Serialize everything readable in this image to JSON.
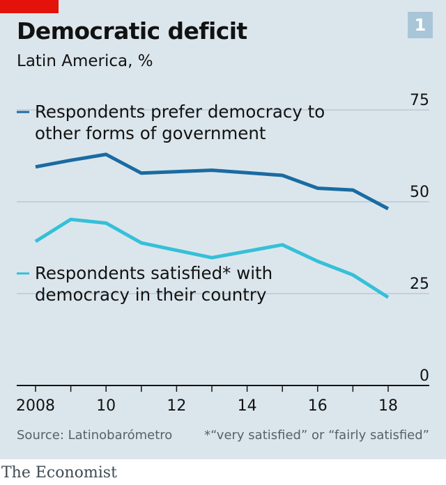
{
  "header": {
    "title": "Democratic deficit",
    "subtitle": "Latin America, %",
    "badge": "1"
  },
  "colors": {
    "accent_red": "#e3120b",
    "badge_bg": "#a8c6d8",
    "series_dark": "#1a6ba1",
    "series_light": "#35c0d8",
    "gridline": "#b9c9d2",
    "axis": "#121212"
  },
  "chart_data": {
    "type": "line",
    "xlim": [
      2008,
      2018
    ],
    "ylim": [
      0,
      75
    ],
    "x_ticks": [
      2008,
      10,
      12,
      14,
      16,
      18
    ],
    "y_ticks": [
      0,
      25,
      50,
      75
    ],
    "grid": true,
    "series": [
      {
        "name": "Respondents prefer democracy to other forms of government",
        "label_lines": [
          "Respondents prefer democracy to",
          "other forms of government"
        ],
        "x": [
          2008,
          2009,
          2010,
          2011,
          2013,
          2015,
          2016,
          2017,
          2018
        ],
        "values": [
          59.5,
          61.3,
          62.9,
          57.8,
          58.6,
          57.2,
          53.7,
          53.2,
          48.1
        ]
      },
      {
        "name": "Respondents satisfied* with democracy in their country",
        "label_lines": [
          "Respondents satisfied* with",
          "democracy in their country"
        ],
        "x": [
          2008,
          2009,
          2010,
          2011,
          2013,
          2015,
          2016,
          2017,
          2018
        ],
        "values": [
          39.2,
          45.2,
          44.2,
          38.8,
          34.8,
          38.3,
          33.8,
          30.1,
          24.0
        ]
      }
    ]
  },
  "footer": {
    "source": "Source: Latinobarómetro",
    "footnote": "*“very satisfied” or “fairly satisfied”",
    "brand": "The Economist"
  }
}
